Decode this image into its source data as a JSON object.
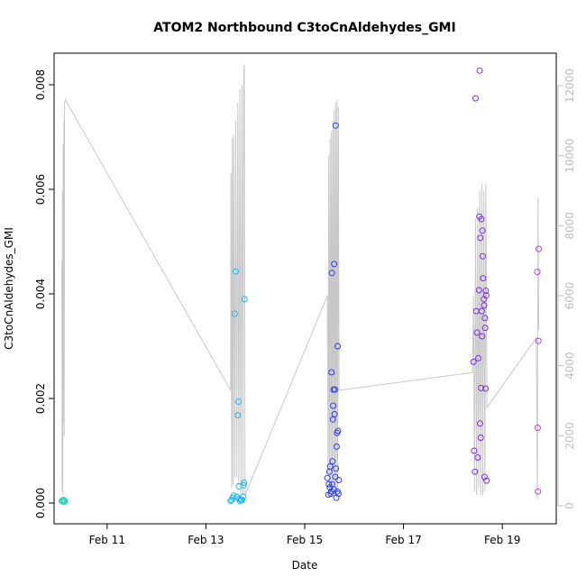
{
  "chart_data": {
    "type": "scatter",
    "title": "ATOM2 Northbound C3toCnAldehydes_GMI",
    "xlabel": "Date",
    "ylabel": "C3toCnAldehydes_GMI",
    "x_ticks": [
      "Feb 11",
      "Feb 13",
      "Feb 15",
      "Feb 17",
      "Feb 19"
    ],
    "y_ticks": [
      "0.000",
      "0.002",
      "0.004",
      "0.006",
      "0.008"
    ],
    "y2_ticks": [
      "0",
      "2000",
      "4000",
      "6000",
      "8000",
      "10000",
      "12000"
    ],
    "xlim": [
      "2017-02-10T00:00",
      "2017-02-20T00:00"
    ],
    "ylim": [
      0,
      0.0085
    ],
    "y2lim": [
      0,
      12700
    ],
    "colors": {
      "axis": "#000000",
      "secondary_axis": "#bdbdbd",
      "altitude_line": "#c8c8c8",
      "flight1": "#22e0b8",
      "flight2": "#1ab8f0",
      "flight3": "#2b3ef0",
      "flight4": "#7a2fe8",
      "flight5": "#c23ee0"
    },
    "series": [
      {
        "color_key": "flight1",
        "points": [
          [
            "2017-02-10T02:00",
            4e-05
          ],
          [
            "2017-02-10T02:15",
            5e-05
          ],
          [
            "2017-02-10T02:30",
            3e-05
          ],
          [
            "2017-02-10T02:45",
            6e-05
          ],
          [
            "2017-02-10T03:00",
            4e-05
          ],
          [
            "2017-02-10T03:10",
            2e-05
          ],
          [
            "2017-02-10T03:20",
            5e-05
          ],
          [
            "2017-02-10T03:30",
            4e-05
          ]
        ]
      },
      {
        "color_key": "flight2",
        "points": [
          [
            "2017-02-13T12:00",
            4e-05
          ],
          [
            "2017-02-13T12:30",
            6e-05
          ],
          [
            "2017-02-13T13:00",
            0.0001
          ],
          [
            "2017-02-13T13:30",
            0.00014
          ],
          [
            "2017-02-13T14:00",
            0.00362
          ],
          [
            "2017-02-13T14:30",
            0.00443
          ],
          [
            "2017-02-13T15:00",
            0.00012
          ],
          [
            "2017-02-13T15:30",
            0.00168
          ],
          [
            "2017-02-13T15:50",
            0.00194
          ],
          [
            "2017-02-13T16:00",
            0.00032
          ],
          [
            "2017-02-13T16:15",
            8e-05
          ],
          [
            "2017-02-13T16:30",
            4e-05
          ],
          [
            "2017-02-13T17:00",
            6e-05
          ],
          [
            "2017-02-13T17:30",
            6e-05
          ],
          [
            "2017-02-13T18:00",
            0.00012
          ],
          [
            "2017-02-13T18:20",
            0.00034
          ],
          [
            "2017-02-13T18:30",
            0.00039
          ],
          [
            "2017-02-13T18:45",
            0.0039
          ]
        ]
      },
      {
        "color_key": "flight3",
        "points": [
          [
            "2017-02-15T11:00",
            0.00048
          ],
          [
            "2017-02-15T11:30",
            0.00016
          ],
          [
            "2017-02-15T12:00",
            0.0006
          ],
          [
            "2017-02-15T12:20",
            0.0007
          ],
          [
            "2017-02-15T12:40",
            0.00018
          ],
          [
            "2017-02-15T13:00",
            0.0025
          ],
          [
            "2017-02-15T13:10",
            0.0044
          ],
          [
            "2017-02-15T13:20",
            0.00036
          ],
          [
            "2017-02-15T13:40",
            0.0016
          ],
          [
            "2017-02-15T13:50",
            0.00186
          ],
          [
            "2017-02-15T14:00",
            0.00217
          ],
          [
            "2017-02-15T14:10",
            0.00026
          ],
          [
            "2017-02-15T14:20",
            0.00457
          ],
          [
            "2017-02-15T14:30",
            0.0017
          ],
          [
            "2017-02-15T14:40",
            0.00217
          ],
          [
            "2017-02-15T15:00",
            0.00722
          ],
          [
            "2017-02-15T15:10",
            0.00066
          ],
          [
            "2017-02-15T15:20",
            0.0001
          ],
          [
            "2017-02-15T15:30",
            0.00108
          ],
          [
            "2017-02-15T15:40",
            0.00134
          ],
          [
            "2017-02-15T16:00",
            0.003
          ],
          [
            "2017-02-15T16:10",
            0.00138
          ],
          [
            "2017-02-15T16:20",
            0.00018
          ],
          [
            "2017-02-15T16:30",
            0.00044
          ],
          [
            "2017-02-15T11:45",
            0.00036
          ],
          [
            "2017-02-15T12:10",
            0.0003
          ],
          [
            "2017-02-15T12:50",
            0.00022
          ],
          [
            "2017-02-15T13:30",
            0.0008
          ],
          [
            "2017-02-15T14:50",
            0.0005
          ],
          [
            "2017-02-15T15:50",
            0.00022
          ]
        ]
      },
      {
        "color_key": "flight4",
        "points": [
          [
            "2017-02-18T10:00",
            0.0027
          ],
          [
            "2017-02-18T10:20",
            0.001
          ],
          [
            "2017-02-18T10:40",
            0.0006
          ],
          [
            "2017-02-18T11:00",
            0.00774
          ],
          [
            "2017-02-18T11:20",
            0.00367
          ],
          [
            "2017-02-18T11:40",
            0.00326
          ],
          [
            "2017-02-18T12:00",
            0.00087
          ],
          [
            "2017-02-18T12:20",
            0.00277
          ],
          [
            "2017-02-18T12:40",
            0.00407
          ],
          [
            "2017-02-18T12:50",
            0.00548
          ],
          [
            "2017-02-18T13:00",
            0.00827
          ],
          [
            "2017-02-18T13:10",
            0.00152
          ],
          [
            "2017-02-18T13:20",
            0.00507
          ],
          [
            "2017-02-18T13:30",
            0.00125
          ],
          [
            "2017-02-18T13:40",
            0.0022
          ],
          [
            "2017-02-18T13:50",
            0.00543
          ],
          [
            "2017-02-18T14:00",
            0.00367
          ],
          [
            "2017-02-18T14:10",
            0.00319
          ],
          [
            "2017-02-18T14:20",
            0.00521
          ],
          [
            "2017-02-18T14:30",
            0.00472
          ],
          [
            "2017-02-18T14:40",
            0.0043
          ],
          [
            "2017-02-18T15:00",
            0.0039
          ],
          [
            "2017-02-18T15:10",
            0.00378
          ],
          [
            "2017-02-18T15:20",
            0.0005
          ],
          [
            "2017-02-18T15:30",
            0.00354
          ],
          [
            "2017-02-18T15:40",
            0.00335
          ],
          [
            "2017-02-18T15:50",
            0.00219
          ],
          [
            "2017-02-18T16:00",
            0.00406
          ],
          [
            "2017-02-18T16:10",
            0.00397
          ],
          [
            "2017-02-18T16:20",
            0.00043
          ]
        ]
      },
      {
        "color_key": "flight5",
        "points": [
          [
            "2017-02-19T17:00",
            0.00442
          ],
          [
            "2017-02-19T17:10",
            0.00144
          ],
          [
            "2017-02-19T17:20",
            0.00022
          ],
          [
            "2017-02-19T17:30",
            0.0031
          ],
          [
            "2017-02-19T17:40",
            0.00486
          ]
        ]
      }
    ],
    "altitude_line": [
      [
        "2017-02-10T02:00",
        7000
      ],
      [
        "2017-02-10T02:10",
        400
      ],
      [
        "2017-02-10T02:20",
        9000
      ],
      [
        "2017-02-10T02:30",
        300
      ],
      [
        "2017-02-10T02:40",
        10300
      ],
      [
        "2017-02-10T02:50",
        2400
      ],
      [
        "2017-02-10T03:00",
        11000
      ],
      [
        "2017-02-10T03:10",
        2000
      ],
      [
        "2017-02-10T03:20",
        11500
      ],
      [
        "2017-02-10T03:40",
        11600
      ],
      [
        "2017-02-13T12:00",
        3300
      ],
      [
        "2017-02-13T12:10",
        9500
      ],
      [
        "2017-02-13T12:30",
        500
      ],
      [
        "2017-02-13T12:50",
        10500
      ],
      [
        "2017-02-13T13:10",
        600
      ],
      [
        "2017-02-13T13:30",
        10600
      ],
      [
        "2017-02-13T14:00",
        800
      ],
      [
        "2017-02-13T14:30",
        11000
      ],
      [
        "2017-02-13T15:00",
        800
      ],
      [
        "2017-02-13T15:30",
        11500
      ],
      [
        "2017-02-13T16:00",
        600
      ],
      [
        "2017-02-13T16:30",
        11900
      ],
      [
        "2017-02-13T17:00",
        200
      ],
      [
        "2017-02-13T17:30",
        12000
      ],
      [
        "2017-02-13T18:00",
        300
      ],
      [
        "2017-02-13T18:20",
        12400
      ],
      [
        "2017-02-13T18:40",
        12600
      ],
      [
        "2017-02-13T19:00",
        300
      ],
      [
        "2017-02-15T11:00",
        6000
      ],
      [
        "2017-02-15T11:20",
        900
      ],
      [
        "2017-02-15T11:40",
        10000
      ],
      [
        "2017-02-15T12:00",
        500
      ],
      [
        "2017-02-15T12:20",
        10500
      ],
      [
        "2017-02-15T12:40",
        400
      ],
      [
        "2017-02-15T13:00",
        10700
      ],
      [
        "2017-02-15T13:20",
        300
      ],
      [
        "2017-02-15T13:40",
        11000
      ],
      [
        "2017-02-15T14:00",
        300
      ],
      [
        "2017-02-15T14:20",
        11300
      ],
      [
        "2017-02-15T14:40",
        300
      ],
      [
        "2017-02-15T15:00",
        11500
      ],
      [
        "2017-02-15T15:20",
        400
      ],
      [
        "2017-02-15T15:40",
        11600
      ],
      [
        "2017-02-15T16:00",
        400
      ],
      [
        "2017-02-15T16:20",
        11400
      ],
      [
        "2017-02-15T16:40",
        3300
      ],
      [
        "2017-02-18T09:00",
        3800
      ],
      [
        "2017-02-18T09:30",
        3800
      ],
      [
        "2017-02-18T10:00",
        6000
      ],
      [
        "2017-02-18T10:30",
        400
      ],
      [
        "2017-02-18T11:00",
        8200
      ],
      [
        "2017-02-18T11:30",
        300
      ],
      [
        "2017-02-18T12:00",
        8500
      ],
      [
        "2017-02-18T12:30",
        500
      ],
      [
        "2017-02-18T13:00",
        9000
      ],
      [
        "2017-02-18T13:30",
        300
      ],
      [
        "2017-02-18T14:00",
        9200
      ],
      [
        "2017-02-18T14:30",
        300
      ],
      [
        "2017-02-18T15:00",
        9000
      ],
      [
        "2017-02-18T15:30",
        400
      ],
      [
        "2017-02-18T16:00",
        9200
      ],
      [
        "2017-02-18T16:30",
        2800
      ],
      [
        "2017-02-19T16:30",
        4800
      ],
      [
        "2017-02-19T17:00",
        200
      ],
      [
        "2017-02-19T17:20",
        8800
      ],
      [
        "2017-02-19T17:40",
        5000
      ]
    ]
  }
}
